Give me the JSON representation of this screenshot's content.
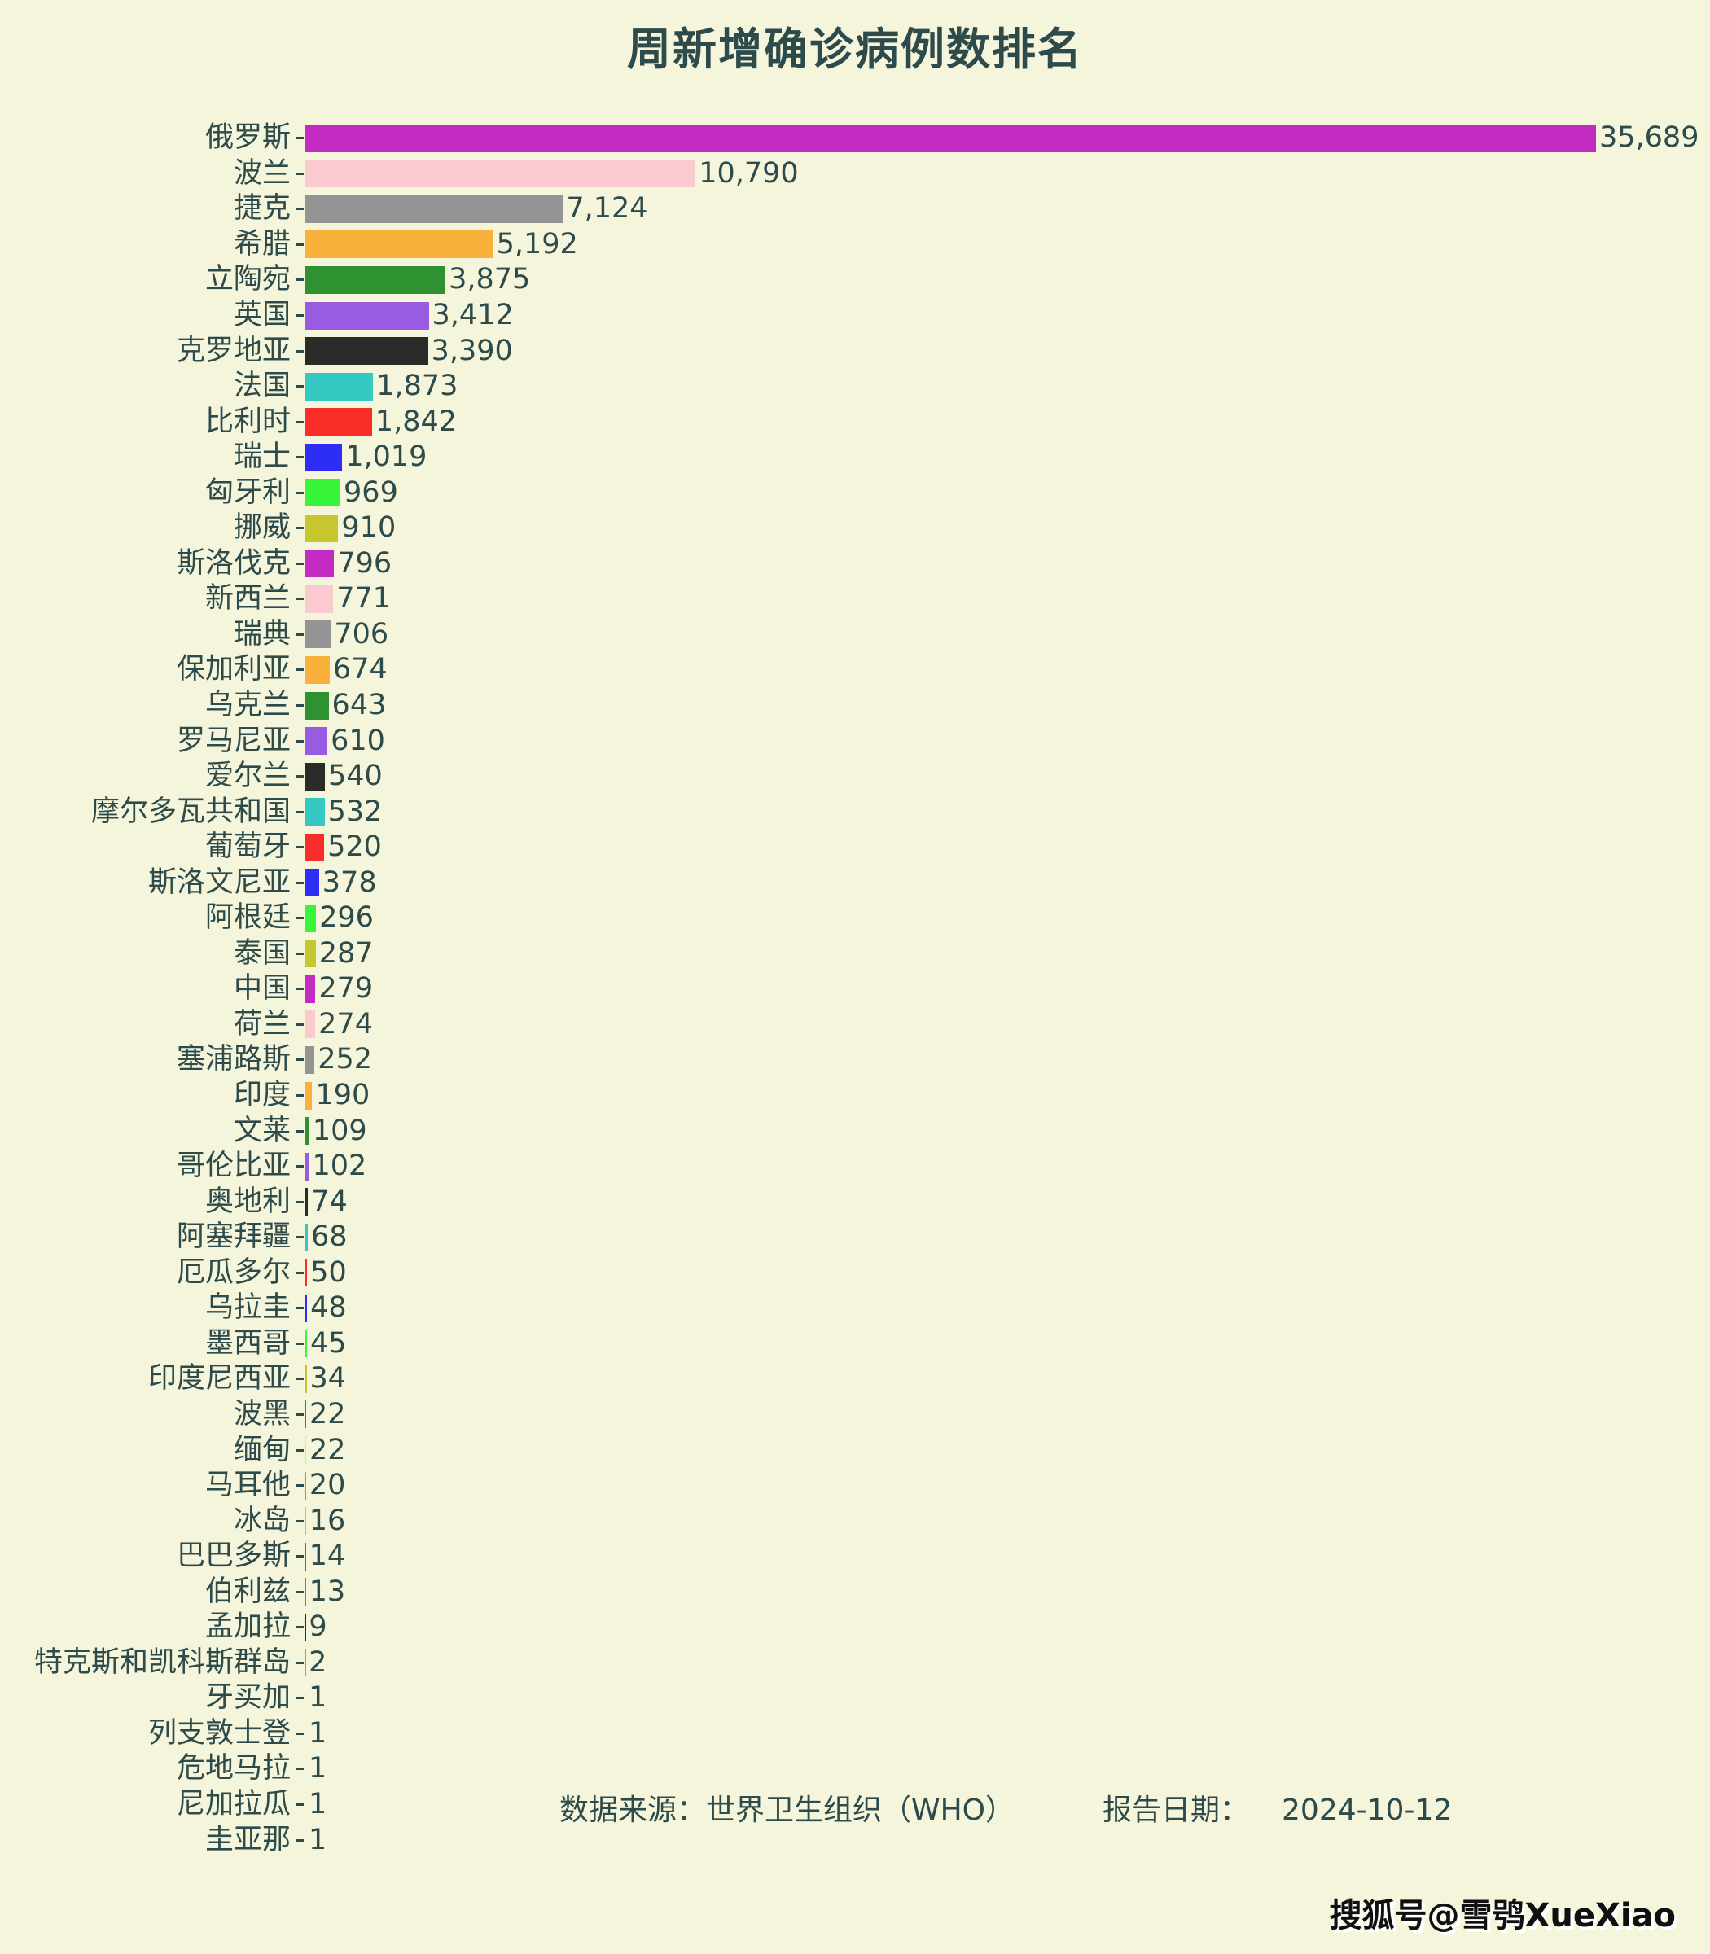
{
  "page": {
    "background_color": "#F5F5DC",
    "text_color": "#2E4B4B"
  },
  "chart_data": {
    "type": "bar",
    "orientation": "horizontal",
    "title": "周新增确诊病例数排名",
    "xlabel": "",
    "ylabel": "",
    "grid": false,
    "legend": false,
    "xlim": [
      0,
      35689
    ],
    "categories": [
      "俄罗斯",
      "波兰",
      "捷克",
      "希腊",
      "立陶宛",
      "英国",
      "克罗地亚",
      "法国",
      "比利时",
      "瑞士",
      "匈牙利",
      "挪威",
      "斯洛伐克",
      "新西兰",
      "瑞典",
      "保加利亚",
      "乌克兰",
      "罗马尼亚",
      "爱尔兰",
      "摩尔多瓦共和国",
      "葡萄牙",
      "斯洛文尼亚",
      "阿根廷",
      "泰国",
      "中国",
      "荷兰",
      "塞浦路斯",
      "印度",
      "文莱",
      "哥伦比亚",
      "奥地利",
      "阿塞拜疆",
      "厄瓜多尔",
      "乌拉圭",
      "墨西哥",
      "印度尼西亚",
      "波黑",
      "缅甸",
      "马耳他",
      "冰岛",
      "巴巴多斯",
      "伯利兹",
      "孟加拉",
      "特克斯和凯科斯群岛",
      "牙买加",
      "列支敦士登",
      "危地马拉",
      "尼加拉瓜",
      "圭亚那"
    ],
    "values": [
      35689,
      10790,
      7124,
      5192,
      3875,
      3412,
      3390,
      1873,
      1842,
      1019,
      969,
      910,
      796,
      771,
      706,
      674,
      643,
      610,
      540,
      532,
      520,
      378,
      296,
      287,
      279,
      274,
      252,
      190,
      109,
      102,
      74,
      68,
      50,
      48,
      45,
      34,
      22,
      22,
      20,
      16,
      14,
      13,
      9,
      2,
      1,
      1,
      1,
      1,
      1
    ],
    "value_labels": [
      "35,689",
      "10,790",
      "7,124",
      "5,192",
      "3,875",
      "3,412",
      "3,390",
      "1,873",
      "1,842",
      "1,019",
      "969",
      "910",
      "796",
      "771",
      "706",
      "674",
      "643",
      "610",
      "540",
      "532",
      "520",
      "378",
      "296",
      "287",
      "279",
      "274",
      "252",
      "190",
      "109",
      "102",
      "74",
      "68",
      "50",
      "48",
      "45",
      "34",
      "22",
      "22",
      "20",
      "16",
      "14",
      "13",
      "9",
      "2",
      "1",
      "1",
      "1",
      "1",
      "1"
    ],
    "bar_color_cycle": [
      "#C32BC3",
      "#FBC9D0",
      "#949494",
      "#FAB03C",
      "#2E9230",
      "#9A5BE3",
      "#2B2B28",
      "#35C8C2",
      "#FB2D28",
      "#2D2DF5",
      "#39F539",
      "#C6C62F"
    ]
  },
  "footer": {
    "source": "数据来源：世界卫生组织（WHO）",
    "report_label": "报告日期：",
    "report_date": "2024-10-12"
  },
  "watermark": "搜狐号@雪鸮XueXiao"
}
